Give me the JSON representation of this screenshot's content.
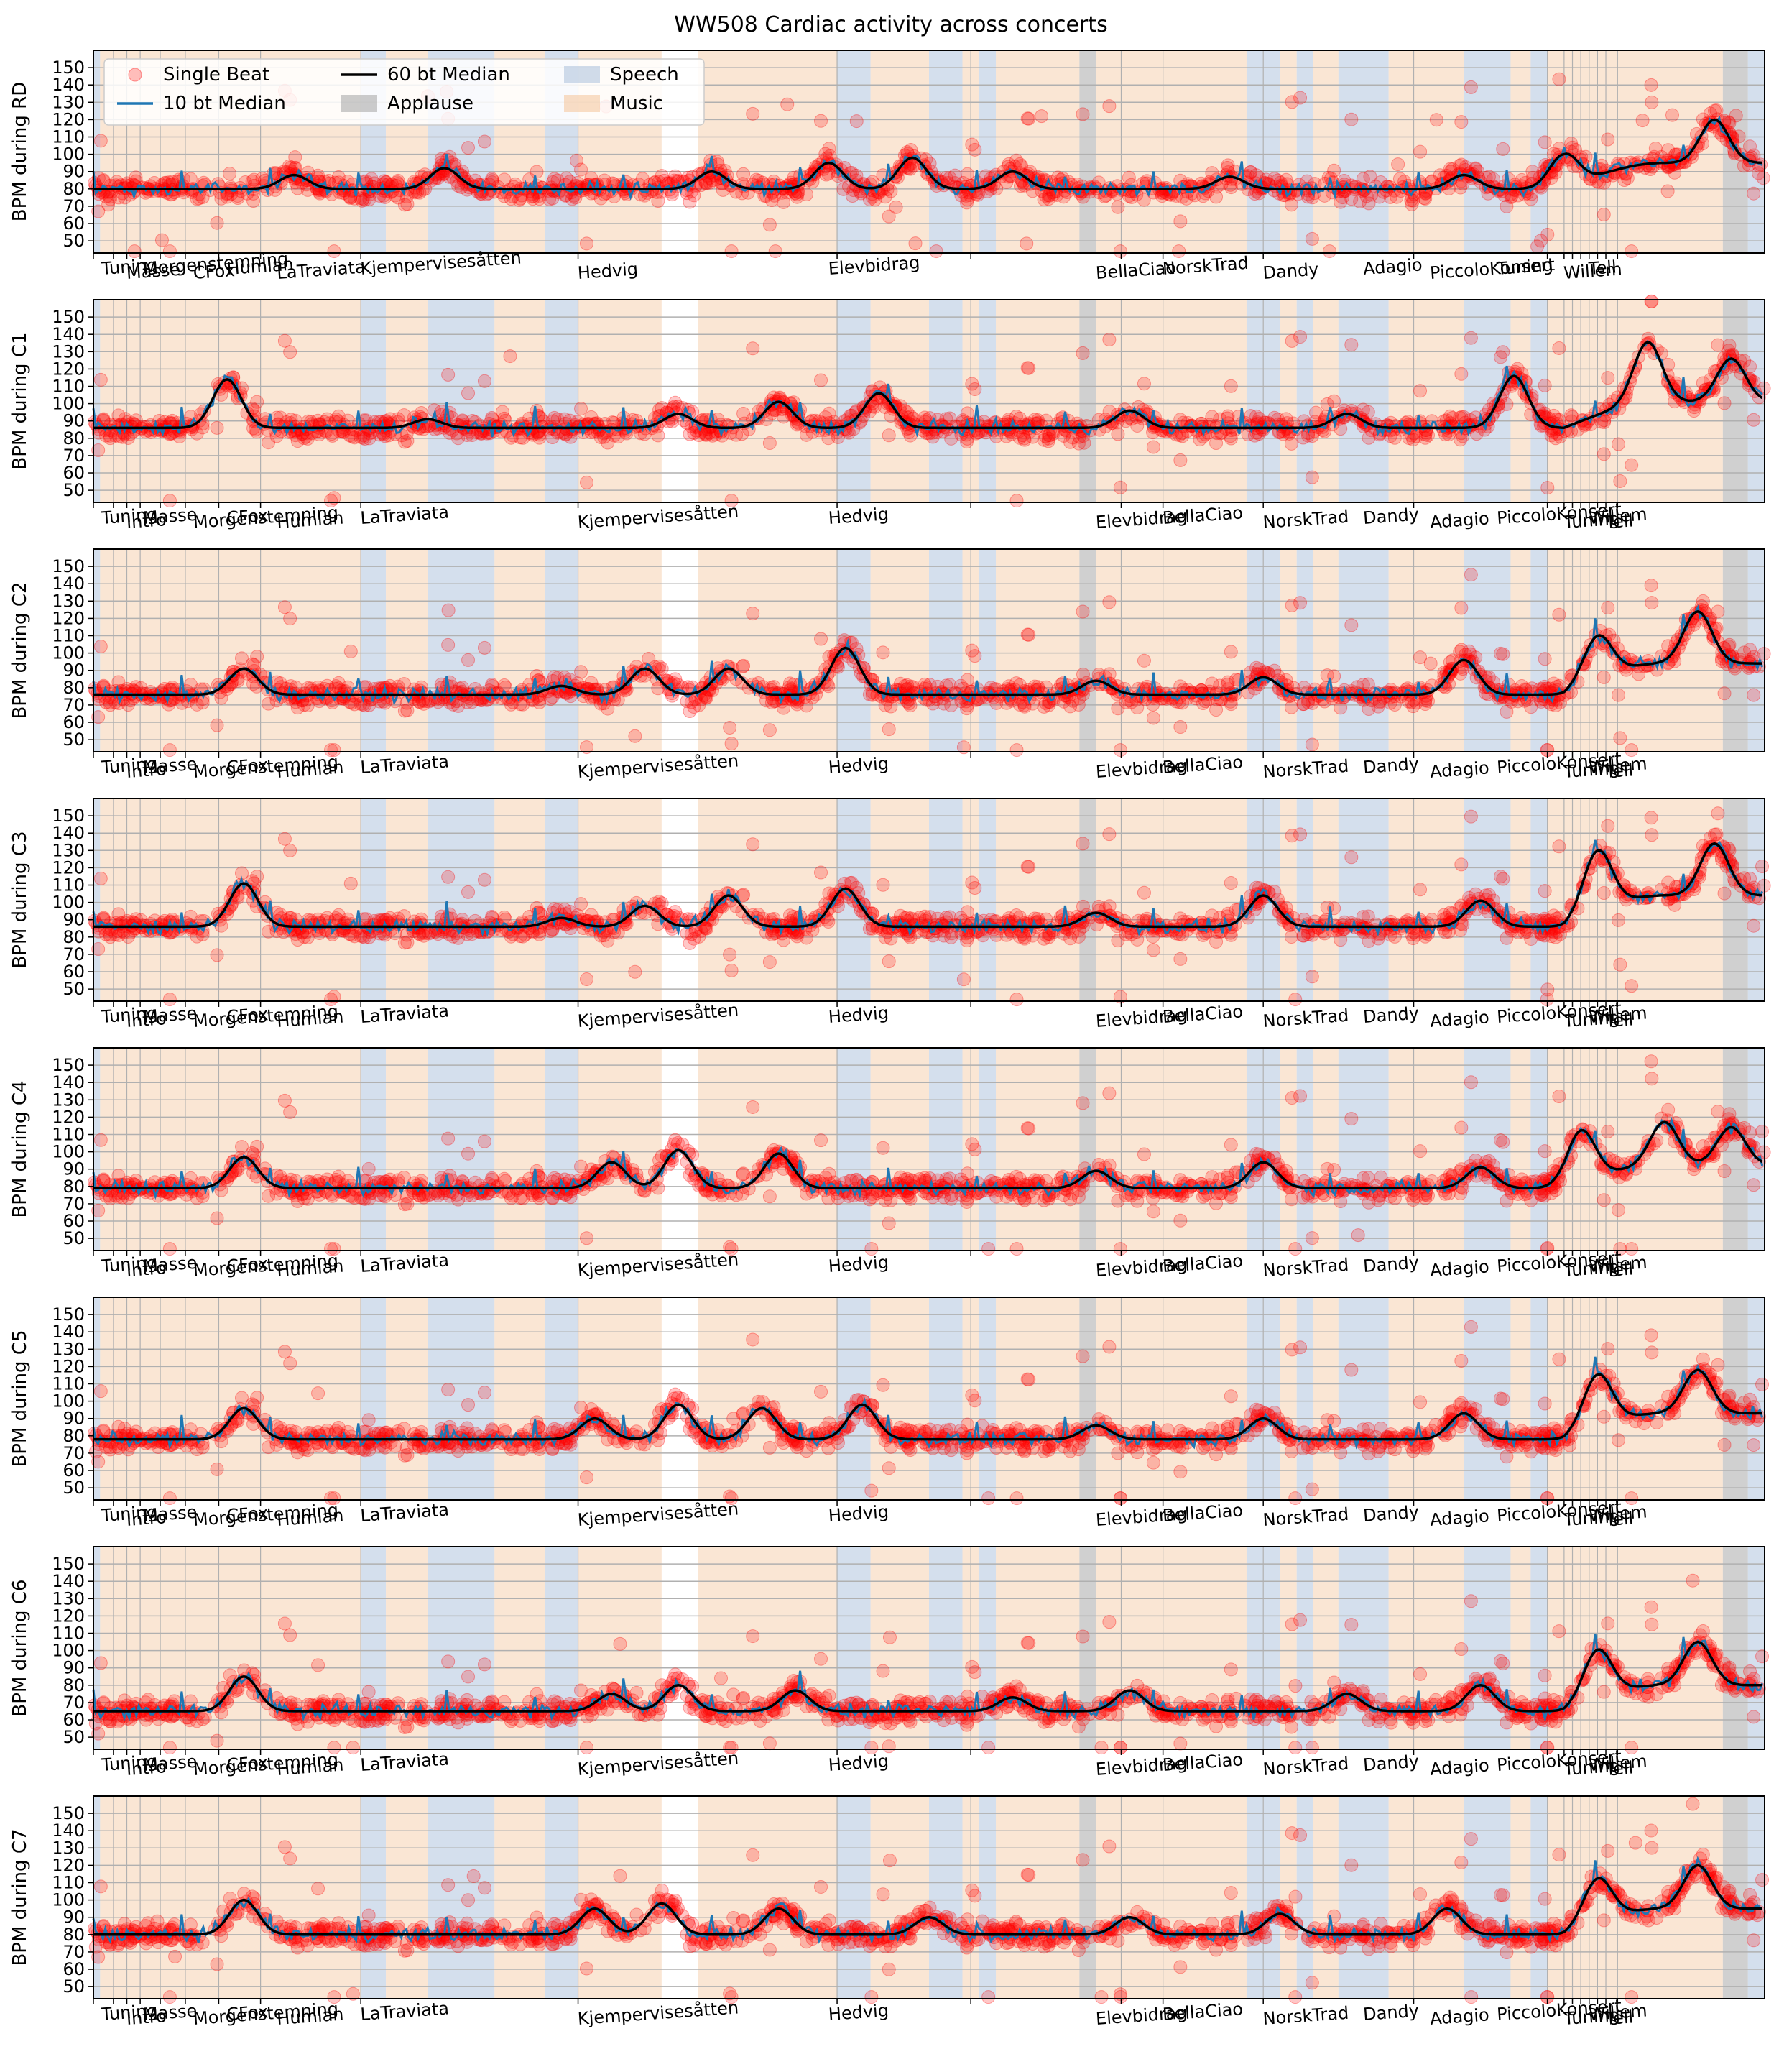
{
  "chart_data": {
    "type": "scatter",
    "title": "WW508 Cardiac activity across concerts",
    "ylim": [
      43,
      160
    ],
    "yticks": [
      50,
      60,
      70,
      80,
      90,
      100,
      110,
      120,
      130,
      140,
      150
    ],
    "grid": "horizontal",
    "legend": {
      "placement": "top-left",
      "entries": [
        {
          "label": "Single Beat",
          "kind": "marker",
          "color": "#ff0000"
        },
        {
          "label": "10 bt Median",
          "kind": "line",
          "color": "#1f77b4"
        },
        {
          "label": "60 bt Median",
          "kind": "line",
          "color": "#000000"
        },
        {
          "label": "Applause",
          "kind": "patch",
          "color": "#aaaaaa"
        },
        {
          "label": "Speech",
          "kind": "patch",
          "color": "#b0c4de"
        },
        {
          "label": "Music",
          "kind": "patch",
          "color": "#f5c8a0"
        }
      ]
    },
    "colors": {
      "single_beat": "#ff0000",
      "median10": "#1f77b4",
      "median60": "#000000",
      "speech": "#b0c4de",
      "music": "#f5c8a0",
      "applause": "#aaaaaa"
    },
    "xtick_labels": [
      "Tuning",
      "Intro",
      "Masse",
      "Morgenstemning",
      "CFox",
      "Hedvig",
      "La Traviata",
      "Kjempervisesåtten",
      "Elevbidrag",
      "Hedvig",
      "Elevbidrag",
      "BellaCiao",
      "NorskTrad",
      "Dandy",
      "Adagio",
      "PiccoloKonsert",
      "Tuning",
      "Willem",
      "Tell"
    ],
    "panels": [
      {
        "ylabel": "BPM during RD",
        "base": 80,
        "xtick_labels": [
          "Tuning",
          "Masse",
          "Morgenstemning",
          "CFox",
          "Humlan",
          "LaTraviata",
          "Kjempervisesåtten",
          "Hedvig",
          "Elevbidrag",
          "BellaCiao",
          "NorskTrad",
          "Dandy",
          "Adagio",
          "PiccoloKonsert",
          "Tuning",
          "Willem",
          "Tell"
        ],
        "peaks": [
          [
            0.12,
            8
          ],
          [
            0.21,
            12
          ],
          [
            0.37,
            10
          ],
          [
            0.44,
            15
          ],
          [
            0.49,
            18
          ],
          [
            0.55,
            10
          ],
          [
            0.68,
            7
          ],
          [
            0.82,
            8
          ],
          [
            0.88,
            20
          ],
          [
            0.97,
            25
          ]
        ]
      },
      {
        "ylabel": "BPM during C1",
        "base": 86,
        "xtick_labels": [
          "Tuning",
          "Intro",
          "Masse",
          "Morgenstemning",
          "CFox",
          "Humlan",
          "LaTraviata",
          "Kjempervisesåtten",
          "Hedvig",
          "Elevbidrag",
          "BellaCiao",
          "NorskTrad",
          "Dandy",
          "Adagio",
          "PiccoloKonsert",
          "Tuning",
          "Willem",
          "Tell"
        ],
        "peaks": [
          [
            0.08,
            28
          ],
          [
            0.2,
            5
          ],
          [
            0.35,
            8
          ],
          [
            0.41,
            15
          ],
          [
            0.47,
            20
          ],
          [
            0.62,
            10
          ],
          [
            0.75,
            8
          ],
          [
            0.85,
            30
          ],
          [
            0.93,
            35
          ],
          [
            0.98,
            25
          ]
        ]
      },
      {
        "ylabel": "BPM during C2",
        "base": 76,
        "xtick_labels": [
          "Tuning",
          "Intro",
          "Masse",
          "Morgenstemning",
          "CFox",
          "Humlan",
          "LaTraviata",
          "Kjempervisesåtten",
          "Hedvig",
          "Elevbidrag",
          "BellaCiao",
          "NorskTrad",
          "Dandy",
          "Adagio",
          "PiccoloKonsert",
          "Tuning",
          "Willem",
          "Tell"
        ],
        "peaks": [
          [
            0.09,
            15
          ],
          [
            0.28,
            5
          ],
          [
            0.33,
            15
          ],
          [
            0.38,
            15
          ],
          [
            0.45,
            27
          ],
          [
            0.6,
            8
          ],
          [
            0.7,
            10
          ],
          [
            0.82,
            20
          ],
          [
            0.9,
            25
          ],
          [
            0.96,
            30
          ]
        ]
      },
      {
        "ylabel": "BPM during C3",
        "base": 86,
        "xtick_labels": [
          "Tuning",
          "Intro",
          "Masse",
          "Morgenstemning",
          "CFox",
          "Humlan",
          "LaTraviata",
          "Kjempervisesåtten",
          "Hedvig",
          "Elevbidrag",
          "BellaCiao",
          "NorskTrad",
          "Dandy",
          "Adagio",
          "PiccoloKonsert",
          "Tuning",
          "Willem",
          "Tell"
        ],
        "peaks": [
          [
            0.09,
            25
          ],
          [
            0.28,
            5
          ],
          [
            0.33,
            12
          ],
          [
            0.38,
            18
          ],
          [
            0.45,
            22
          ],
          [
            0.6,
            8
          ],
          [
            0.7,
            18
          ],
          [
            0.83,
            15
          ],
          [
            0.9,
            35
          ],
          [
            0.97,
            30
          ]
        ]
      },
      {
        "ylabel": "BPM during C4",
        "base": 79,
        "xtick_labels": [
          "Tuning",
          "Intro",
          "Masse",
          "Morgenstemning",
          "CFox",
          "Humlan",
          "LaTraviata",
          "Kjempervisesåtten",
          "Hedvig",
          "Elevbidrag",
          "BellaCiao",
          "NorskTrad",
          "Dandy",
          "Adagio",
          "PiccoloKonsert",
          "Tuning",
          "Willem",
          "Tell"
        ],
        "peaks": [
          [
            0.09,
            18
          ],
          [
            0.31,
            15
          ],
          [
            0.35,
            22
          ],
          [
            0.41,
            20
          ],
          [
            0.6,
            10
          ],
          [
            0.7,
            15
          ],
          [
            0.83,
            12
          ],
          [
            0.89,
            30
          ],
          [
            0.94,
            25
          ],
          [
            0.98,
            22
          ]
        ]
      },
      {
        "ylabel": "BPM during C5",
        "base": 78,
        "xtick_labels": [
          "Tuning",
          "Intro",
          "Masse",
          "Morgenstemning",
          "CFox",
          "Humlan",
          "LaTraviata",
          "Kjempervisesåtten",
          "Hedvig",
          "Elevbidrag",
          "BellaCiao",
          "NorskTrad",
          "Dandy",
          "Adagio",
          "PiccoloKonsert",
          "Tuning",
          "Willem",
          "Tell"
        ],
        "peaks": [
          [
            0.09,
            18
          ],
          [
            0.3,
            12
          ],
          [
            0.35,
            20
          ],
          [
            0.4,
            18
          ],
          [
            0.46,
            20
          ],
          [
            0.6,
            8
          ],
          [
            0.7,
            12
          ],
          [
            0.82,
            15
          ],
          [
            0.9,
            30
          ],
          [
            0.96,
            25
          ]
        ]
      },
      {
        "ylabel": "BPM during C6",
        "base": 65,
        "xtick_labels": [
          "Tuning",
          "Intro",
          "Masse",
          "Morgenstemning",
          "CFox",
          "Humlan",
          "LaTraviata",
          "Kjempervisesåtten",
          "Hedvig",
          "Elevbidrag",
          "BellaCiao",
          "NorskTrad",
          "Dandy",
          "Adagio",
          "PiccoloKonsert",
          "Tuning",
          "Willem",
          "Tell"
        ],
        "peaks": [
          [
            0.09,
            20
          ],
          [
            0.31,
            10
          ],
          [
            0.35,
            15
          ],
          [
            0.42,
            12
          ],
          [
            0.55,
            8
          ],
          [
            0.62,
            12
          ],
          [
            0.75,
            10
          ],
          [
            0.83,
            15
          ],
          [
            0.9,
            28
          ],
          [
            0.96,
            25
          ]
        ]
      },
      {
        "ylabel": "BPM during C7",
        "base": 80,
        "xtick_labels": [
          "Tuning",
          "Intro",
          "Masse",
          "Morgenstemning",
          "CFox",
          "Humlan",
          "LaTraviata",
          "Kjempervisesåtten",
          "Hedvig",
          "Elevbidrag",
          "BellaCiao",
          "NorskTrad",
          "Dandy",
          "Adagio",
          "PiccoloKonsert",
          "Tuning",
          "Willem",
          "Tell"
        ],
        "peaks": [
          [
            0.09,
            20
          ],
          [
            0.3,
            15
          ],
          [
            0.34,
            18
          ],
          [
            0.41,
            15
          ],
          [
            0.5,
            10
          ],
          [
            0.62,
            10
          ],
          [
            0.71,
            12
          ],
          [
            0.81,
            15
          ],
          [
            0.9,
            25
          ],
          [
            0.96,
            25
          ]
        ]
      }
    ]
  }
}
